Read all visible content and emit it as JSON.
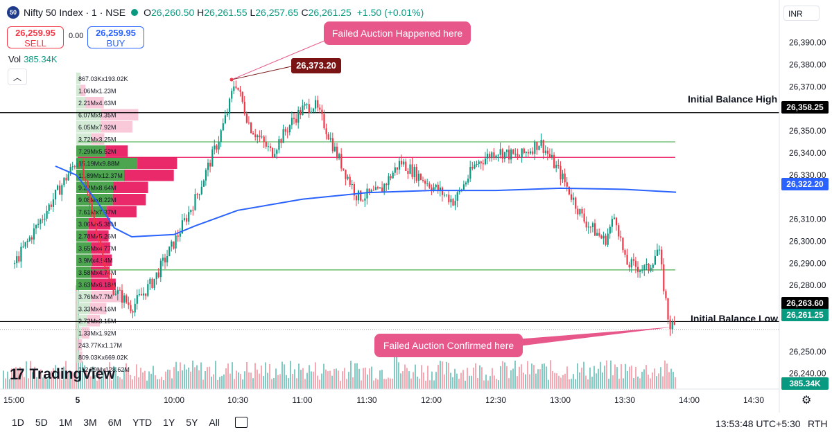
{
  "header": {
    "symbol_badge": "50",
    "symbol": "Nifty 50 Index · 1 · NSE",
    "ohlc": [
      {
        "k": "O",
        "v": "26,260.50"
      },
      {
        "k": "H",
        "v": "26,261.55"
      },
      {
        "k": "L",
        "v": "26,257.65"
      },
      {
        "k": "C",
        "v": "26,261.25"
      }
    ],
    "change": "+1.50 (+0.01%)"
  },
  "trade": {
    "sell_price": "26,259.95",
    "sell_label": "SELL",
    "spread": "0.00",
    "buy_price": "26,259.95",
    "buy_label": "BUY"
  },
  "volume": {
    "label": "Vol",
    "value": "385.34K",
    "tag": "385.34K"
  },
  "currency": "INR",
  "annotations": {
    "failed_auction": "Failed Auction Happened here",
    "failed_confirmed": "Failed Auction Confirmed here",
    "high_tag": "26,373.20",
    "ib_high": "Initial Balance High",
    "ib_low": "Initial Balance Low"
  },
  "axis_tags": {
    "ib_high": "26,358.25",
    "vwap": "26,322.20",
    "ib_low": "26,263.60",
    "last": "26,261.25"
  },
  "colors": {
    "up": "#089981",
    "down": "#f23645",
    "vwap": "#2962ff",
    "callout": "#e8578a",
    "green_line": "#4caf50",
    "red_line": "#e91e63"
  },
  "profile_labels": [
    "867.03Kx193.02K",
    "1.06Mx1.23M",
    "2.21Mx4.63M",
    "6.07Mx9.35M",
    "6.05Mx7.92M",
    "3.72Mx3.25M",
    "7.29Mx5.52M",
    "15.19Mx9.88M",
    "11.89Mx12.37M",
    "9.22Mx8.64M",
    "9.08Mx8.22M",
    "7.61Mx7.37M",
    "3.06Mx5.38M",
    "2.78Mx5.26M",
    "3.65Mx4.77M",
    "3.9Mx4.94M",
    "3.58Mx4.74M",
    "3.63Mx6.18M",
    "3.76Mx7.7M",
    "3.33Mx4.16M",
    "2.72Mx3.15M",
    "1.33Mx1.92M",
    "243.77Kx1.17M",
    "809.03Kx669.02K",
    "112.79Mx128.62M"
  ],
  "branding": {
    "logo": "TradingView"
  },
  "timeframes": [
    "1D",
    "5D",
    "1M",
    "3M",
    "6M",
    "YTD",
    "1Y",
    "5Y",
    "All"
  ],
  "status": {
    "time": "13:53:48 UTC+5:30",
    "session": "RTH"
  },
  "chart_data": {
    "type": "candlestick",
    "title": "Nifty 50 Index · 1 · NSE",
    "x_ticks": [
      "15:00",
      "5",
      "10:00",
      "10:30",
      "11:00",
      "11:30",
      "12:00",
      "12:30",
      "13:00",
      "13:30",
      "14:00",
      "14:30"
    ],
    "y_ticks": [
      26390,
      26380,
      26370,
      26350,
      26340,
      26330,
      26310,
      26300,
      26290,
      26280,
      26270,
      26250,
      26240
    ],
    "ylim": [
      26233,
      26398
    ],
    "price_path": [
      [
        "15:00",
        26290
      ],
      [
        "5",
        26338
      ],
      [
        "09:20",
        26318
      ],
      [
        "09:30",
        26280
      ],
      [
        "09:40",
        26270
      ],
      [
        "09:50",
        26282
      ],
      [
        "10:00",
        26300
      ],
      [
        "10:10",
        26320
      ],
      [
        "10:20",
        26345
      ],
      [
        "10:25",
        26360
      ],
      [
        "10:28",
        26373.2
      ],
      [
        "10:35",
        26352
      ],
      [
        "10:45",
        26340
      ],
      [
        "10:55",
        26355
      ],
      [
        "11:00",
        26360
      ],
      [
        "11:05",
        26362
      ],
      [
        "11:10",
        26352
      ],
      [
        "11:15",
        26340
      ],
      [
        "11:25",
        26320
      ],
      [
        "11:35",
        26322
      ],
      [
        "11:45",
        26336
      ],
      [
        "12:00",
        26325
      ],
      [
        "12:10",
        26318
      ],
      [
        "12:20",
        26335
      ],
      [
        "12:30",
        26341
      ],
      [
        "12:40",
        26338
      ],
      [
        "12:50",
        26345
      ],
      [
        "13:00",
        26330
      ],
      [
        "13:10",
        26310
      ],
      [
        "13:20",
        26300
      ],
      [
        "13:25",
        26312
      ],
      [
        "13:30",
        26290
      ],
      [
        "13:40",
        26287
      ],
      [
        "13:45",
        26297
      ],
      [
        "13:50",
        26262
      ],
      [
        "13:53",
        26261.25
      ]
    ],
    "levels": {
      "initial_balance_high": 26358.25,
      "initial_balance_low": 26263.6,
      "vwap_last": 26322.2,
      "last": 26261.25,
      "session_high": 26373.2
    }
  }
}
